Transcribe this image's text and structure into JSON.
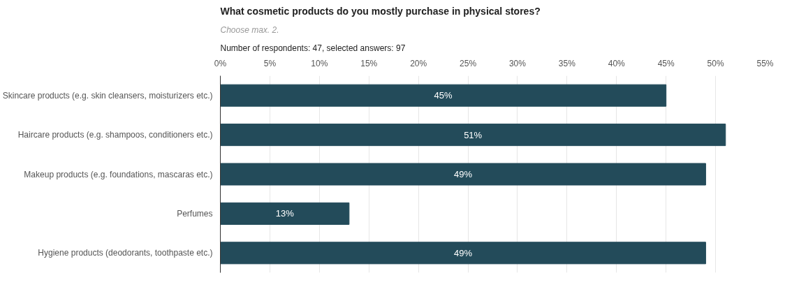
{
  "chart_data": {
    "type": "bar",
    "orientation": "horizontal",
    "title": "What cosmetic products do you mostly purchase in physical stores?",
    "subtitle": "Choose max. 2.",
    "annotations": [
      "Number of respondents: 47, selected answers: 97"
    ],
    "categories": [
      "Skincare products (e.g. skin cleansers, moisturizers etc.)",
      "Haircare products (e.g. shampoos, conditioners etc.)",
      "Makeup products (e.g. foundations, mascaras etc.)",
      "Perfumes",
      "Hygiene products (deodorants, toothpaste etc.)"
    ],
    "values": [
      45,
      51,
      49,
      13,
      49
    ],
    "color": "#234b5a",
    "value_labels": [
      "45%",
      "51%",
      "49%",
      "13%",
      "49%"
    ],
    "xlim": [
      0,
      55
    ],
    "xticks": [
      {
        "value": 0,
        "label": "0%"
      },
      {
        "value": 5,
        "label": "5%"
      },
      {
        "value": 10,
        "label": "10%"
      },
      {
        "value": 15,
        "label": "15%"
      },
      {
        "value": 20,
        "label": "20%"
      },
      {
        "value": 25,
        "label": "25%"
      },
      {
        "value": 30,
        "label": "30%"
      },
      {
        "value": 35,
        "label": "35%"
      },
      {
        "value": 40,
        "label": "40%"
      },
      {
        "value": 45,
        "label": "45%"
      },
      {
        "value": 50,
        "label": "50%"
      },
      {
        "value": 55,
        "label": "55%"
      }
    ],
    "grid": "x"
  }
}
